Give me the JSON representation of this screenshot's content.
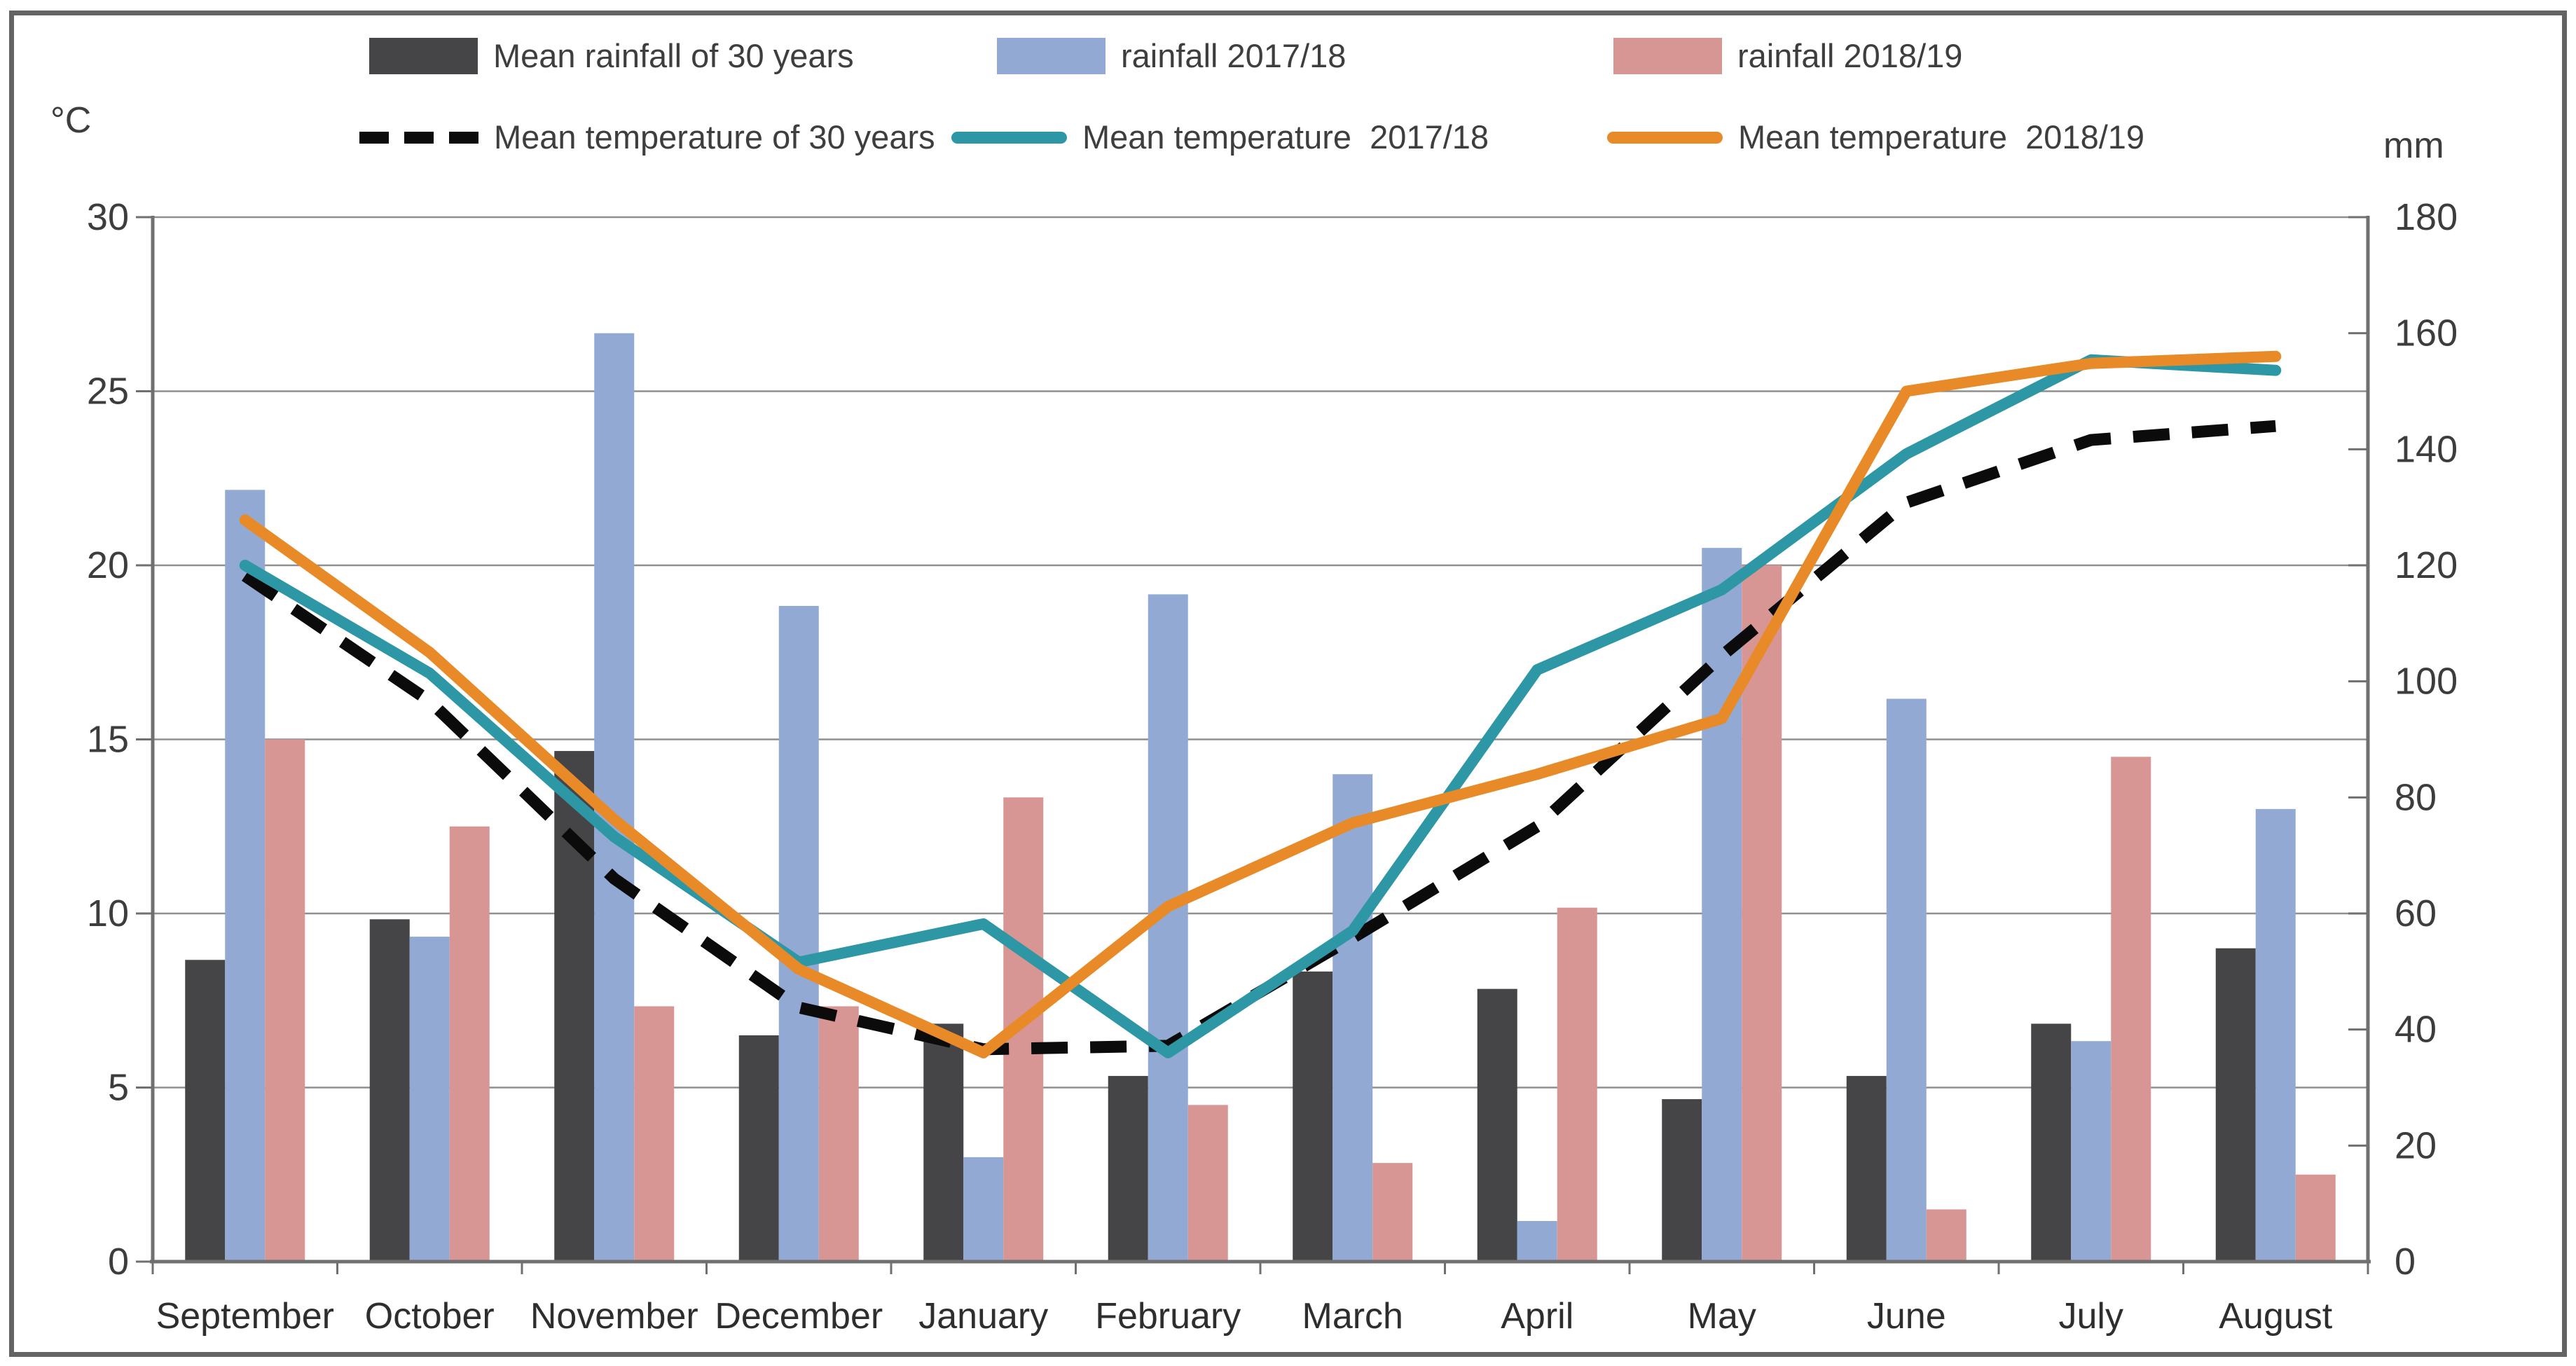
{
  "chart_data": {
    "type": "bar+line",
    "title": "",
    "categories": [
      "September",
      "October",
      "November",
      "December",
      "January",
      "February",
      "March",
      "April",
      "May",
      "June",
      "July",
      "August"
    ],
    "left_axis": {
      "unit": "°C",
      "min": 0,
      "max": 30,
      "step": 5,
      "ticks": [
        0,
        5,
        10,
        15,
        20,
        25,
        30
      ]
    },
    "right_axis": {
      "unit": "mm",
      "min": 0,
      "max": 180,
      "step": 20,
      "ticks": [
        0,
        20,
        40,
        60,
        80,
        100,
        120,
        140,
        160,
        180
      ]
    },
    "grid": "on",
    "legend_position": "top",
    "bar_series": [
      {
        "name": "Mean rainfall of 30 years",
        "color": "#454547",
        "axis": "mm",
        "values": [
          52,
          59,
          88,
          39,
          41,
          32,
          50,
          47,
          28,
          32,
          41,
          54
        ]
      },
      {
        "name": "rainfall 2017/18",
        "color": "#92a9d3",
        "axis": "mm",
        "values": [
          133,
          56,
          160,
          113,
          18,
          115,
          84,
          7,
          123,
          97,
          38,
          78
        ]
      },
      {
        "name": "rainfall 2018/19",
        "color": "#d79593",
        "axis": "mm",
        "values": [
          90,
          75,
          44,
          44,
          80,
          27,
          17,
          61,
          120,
          9,
          87,
          15
        ]
      }
    ],
    "line_series": [
      {
        "name": "Mean temperature of 30 years",
        "color": "#0b0b0b",
        "style": "dashed",
        "axis": "°C",
        "values": [
          19.7,
          16.1,
          11.0,
          7.3,
          6.1,
          6.2,
          9.3,
          12.5,
          17.4,
          21.8,
          23.6,
          24.0
        ]
      },
      {
        "name": "Mean temperature  2017/18",
        "color": "#2d97a5",
        "style": "solid",
        "axis": "°C",
        "values": [
          20.0,
          16.9,
          12.2,
          8.6,
          9.7,
          6.0,
          9.5,
          17.0,
          19.3,
          23.2,
          25.9,
          25.6
        ]
      },
      {
        "name": "Mean temperature  2018/19",
        "color": "#e98a28",
        "style": "solid",
        "axis": "°C",
        "values": [
          21.3,
          17.5,
          12.7,
          8.4,
          6.0,
          10.2,
          12.6,
          14.0,
          15.6,
          25.0,
          25.8,
          26.0
        ]
      }
    ]
  }
}
